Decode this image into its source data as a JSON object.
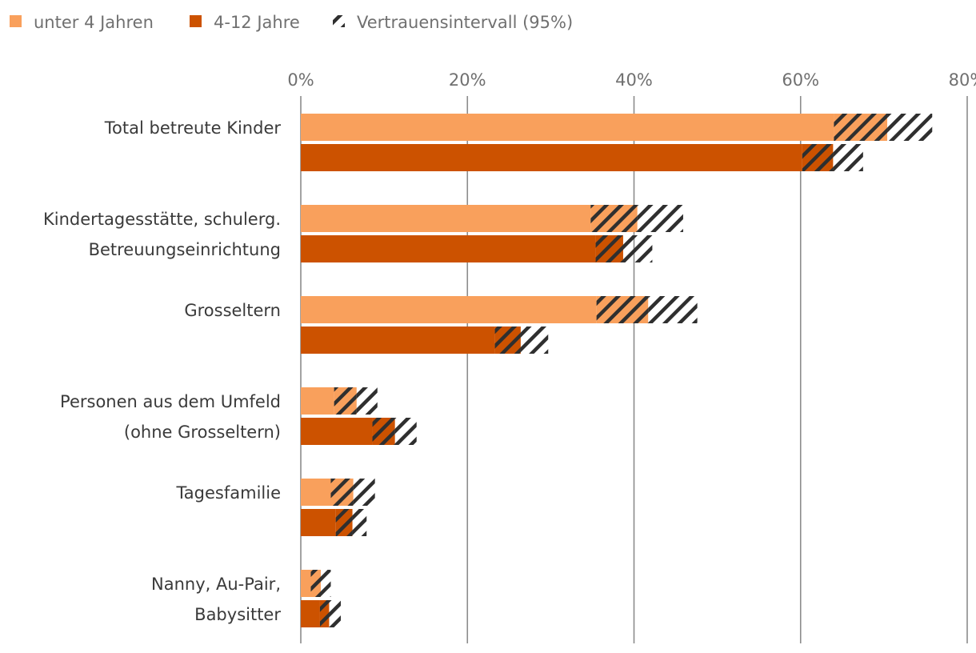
{
  "chart_data": {
    "type": "bar",
    "orientation": "horizontal",
    "categories": [
      [
        "Total betreute Kinder"
      ],
      [
        "Kindertagesstätte, schulerg.",
        "Betreuungseinrichtung"
      ],
      [
        "Grosseltern"
      ],
      [
        "Personen aus dem Umfeld",
        "(ohne Grosseltern)"
      ],
      [
        "Tagesfamilie"
      ],
      [
        "Nanny, Au-Pair,",
        "Babysitter"
      ]
    ],
    "series": [
      {
        "name": "unter 4 Jahren",
        "color": "#F9A05C",
        "ci_lower": [
          64.0,
          34.8,
          35.5,
          4.0,
          3.6,
          1.2
        ],
        "value": [
          70.4,
          40.4,
          41.7,
          6.7,
          6.3,
          2.4
        ],
        "ci_upper": [
          75.8,
          45.9,
          47.6,
          9.2,
          8.9,
          3.6
        ]
      },
      {
        "name": "4-12 Jahre",
        "color": "#CC5200",
        "ci_lower": [
          60.2,
          35.4,
          23.3,
          8.6,
          4.2,
          2.3
        ],
        "value": [
          63.9,
          38.7,
          26.4,
          11.3,
          6.2,
          3.4
        ],
        "ci_upper": [
          67.5,
          42.2,
          29.7,
          13.9,
          7.9,
          4.8
        ]
      }
    ],
    "ci_label": "Vertrauensintervall (95%)",
    "xlim": [
      0,
      80
    ],
    "x_ticks": [
      0,
      20,
      40,
      60,
      80
    ],
    "x_tick_labels": [
      "0%",
      "20%",
      "40%",
      "60%",
      "80%"
    ],
    "xaxis_position": "top",
    "grid": true,
    "legend_position": "top-left"
  }
}
